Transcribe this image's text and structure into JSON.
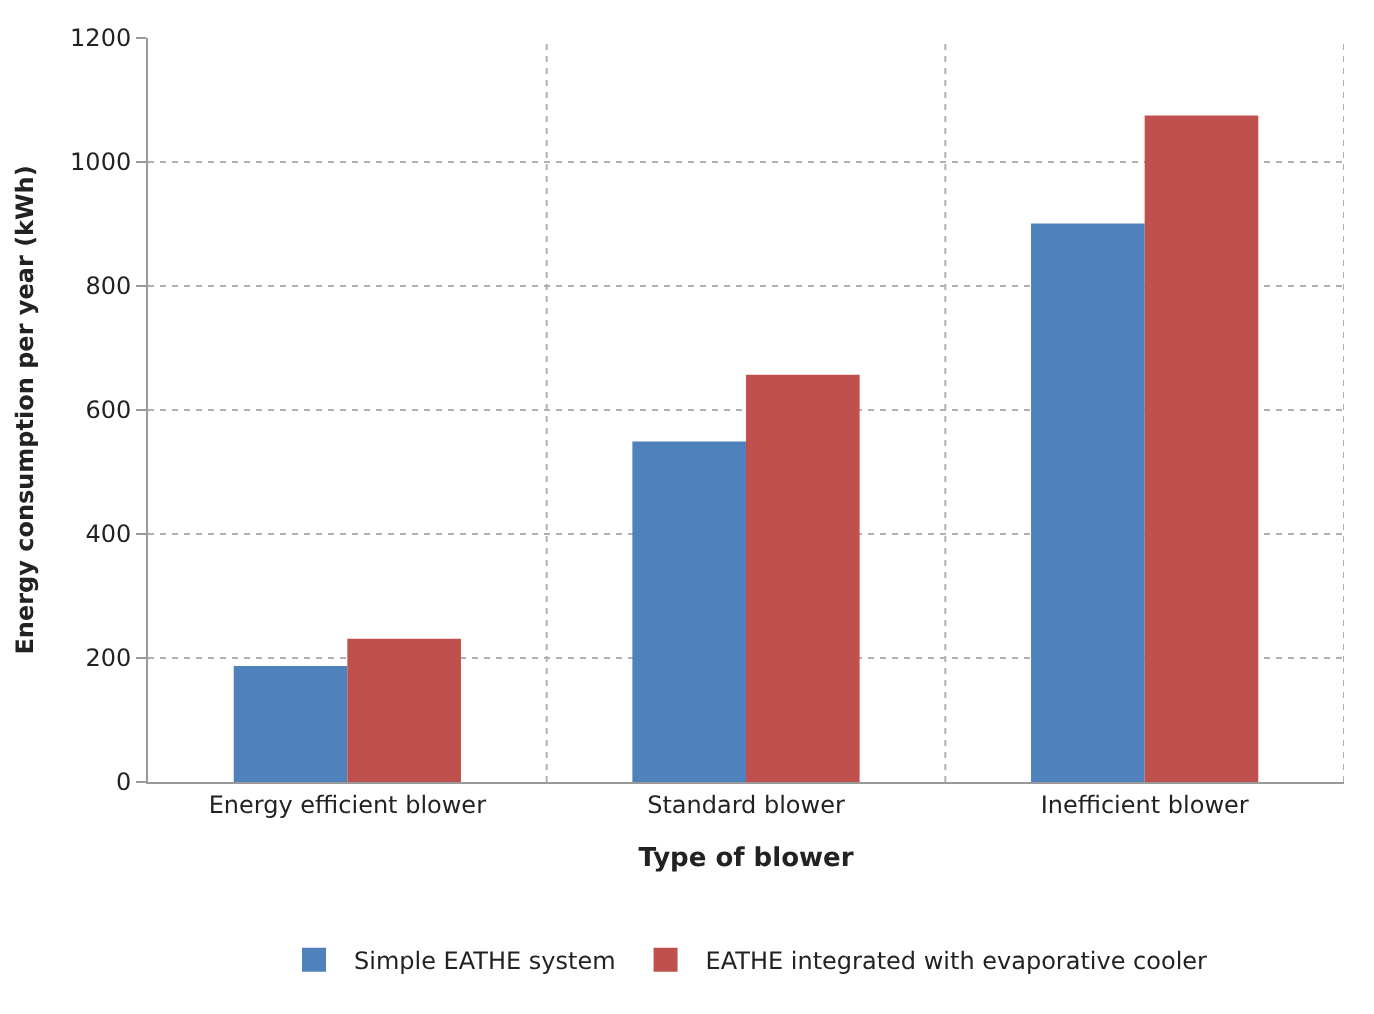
{
  "chart_data": {
    "type": "bar",
    "xlabel": "Type of blower",
    "ylabel": "Energy consumption per year (kWh)",
    "categories": [
      "Energy efficient blower",
      "Standard blower",
      "Inefficient blower"
    ],
    "series": [
      {
        "name": "Simple EATHE system",
        "color": "#4f81bd",
        "values": [
          187,
          549,
          901
        ]
      },
      {
        "name": "EATHE integrated with evaporative cooler",
        "color": "#c0504d",
        "values": [
          231,
          657,
          1075
        ]
      }
    ],
    "ylim": [
      0,
      1200
    ],
    "yticks": [
      0,
      200,
      400,
      600,
      800,
      1000,
      1200
    ],
    "grid": true,
    "legend": "bottom"
  }
}
